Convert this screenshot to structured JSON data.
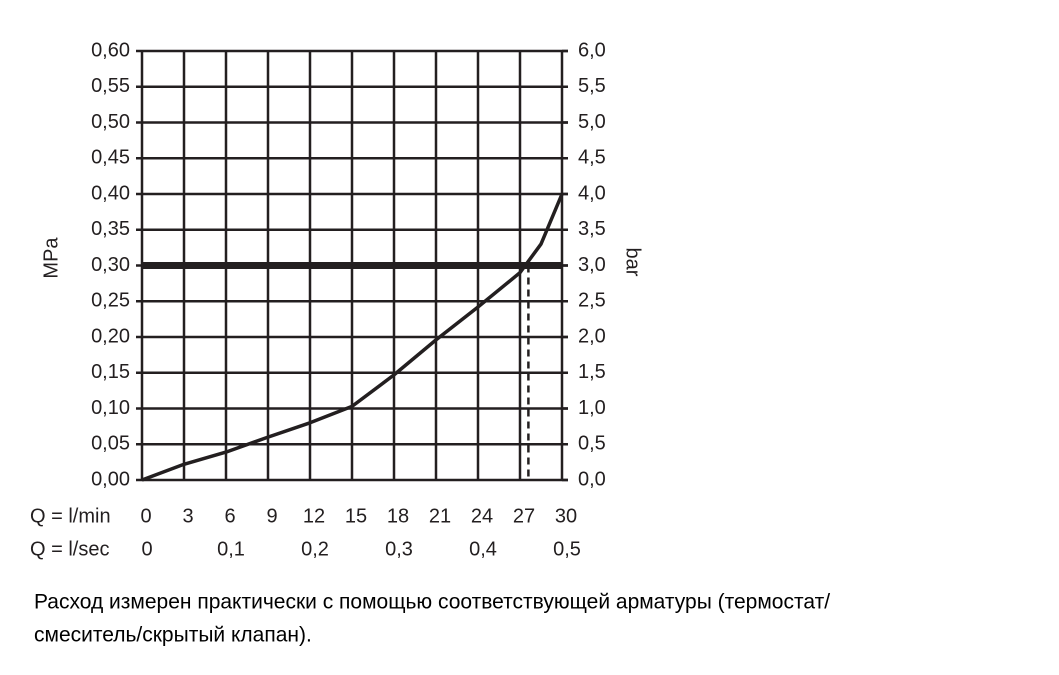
{
  "chart_data": {
    "type": "line",
    "y_label": "MPa",
    "y2_label": "bar",
    "x_label": "Q = l/min",
    "x2_label": "Q = l/sec",
    "x": [
      0,
      3,
      6,
      9,
      12,
      15,
      18,
      21,
      24,
      27,
      28.5,
      30
    ],
    "series": [
      {
        "color": "#231f20",
        "values": [
          0,
          0.022,
          0.039,
          0.06,
          0.08,
          0.103,
          0.147,
          0.196,
          0.242,
          0.29,
          0.33,
          0.4
        ]
      }
    ],
    "reference_y": 0.3,
    "reference_x": 27.6,
    "xlim": [
      0,
      30
    ],
    "xticks": [
      0,
      3,
      6,
      9,
      12,
      15,
      18,
      21,
      24,
      27,
      30
    ],
    "x2lim": [
      0,
      0.5
    ],
    "x2ticks": [
      0,
      {
        "value": 0.1,
        "label": "0,1"
      },
      {
        "value": 0.2,
        "label": "0,2"
      },
      {
        "value": 0.3,
        "label": "0,3"
      },
      {
        "value": 0.4,
        "label": "0,4"
      },
      {
        "value": 0.5,
        "label": "0,5"
      }
    ],
    "ylim": [
      0,
      0.6
    ],
    "yticks": [
      {
        "value": 0,
        "label": "0,00"
      },
      {
        "value": 0.05,
        "label": "0,05"
      },
      {
        "value": 0.1,
        "label": "0,10"
      },
      {
        "value": 0.15,
        "label": "0,15"
      },
      {
        "value": 0.2,
        "label": "0,20"
      },
      {
        "value": 0.25,
        "label": "0,25"
      },
      {
        "value": 0.3,
        "label": "0,30"
      },
      {
        "value": 0.35,
        "label": "0,35"
      },
      {
        "value": 0.4,
        "label": "0,40"
      },
      {
        "value": 0.45,
        "label": "0,45"
      },
      {
        "value": 0.5,
        "label": "0,50"
      },
      {
        "value": 0.55,
        "label": "0,55"
      },
      {
        "value": 0.6,
        "label": "0,60"
      }
    ],
    "y2lim": [
      0,
      6
    ],
    "y2ticks": [
      {
        "value": 0,
        "label": "0,0"
      },
      {
        "value": 0.5,
        "label": "0,5"
      },
      {
        "value": 1,
        "label": "1,0"
      },
      {
        "value": 1.5,
        "label": "1,5"
      },
      {
        "value": 2,
        "label": "2,0"
      },
      {
        "value": 2.5,
        "label": "2,5"
      },
      {
        "value": 3,
        "label": "3,0"
      },
      {
        "value": 3.5,
        "label": "3,5"
      },
      {
        "value": 4,
        "label": "4,0"
      },
      {
        "value": 4.5,
        "label": "4,5"
      },
      {
        "value": 5,
        "label": "5,0"
      },
      {
        "value": 5.5,
        "label": "5,5"
      },
      {
        "value": 6,
        "label": "6,0"
      }
    ],
    "grid": true,
    "caption": [
      "Расход измерен практически с помощью соответствующей арматуры (термостат/",
      "смеситель/скрытый клапан)."
    ]
  }
}
